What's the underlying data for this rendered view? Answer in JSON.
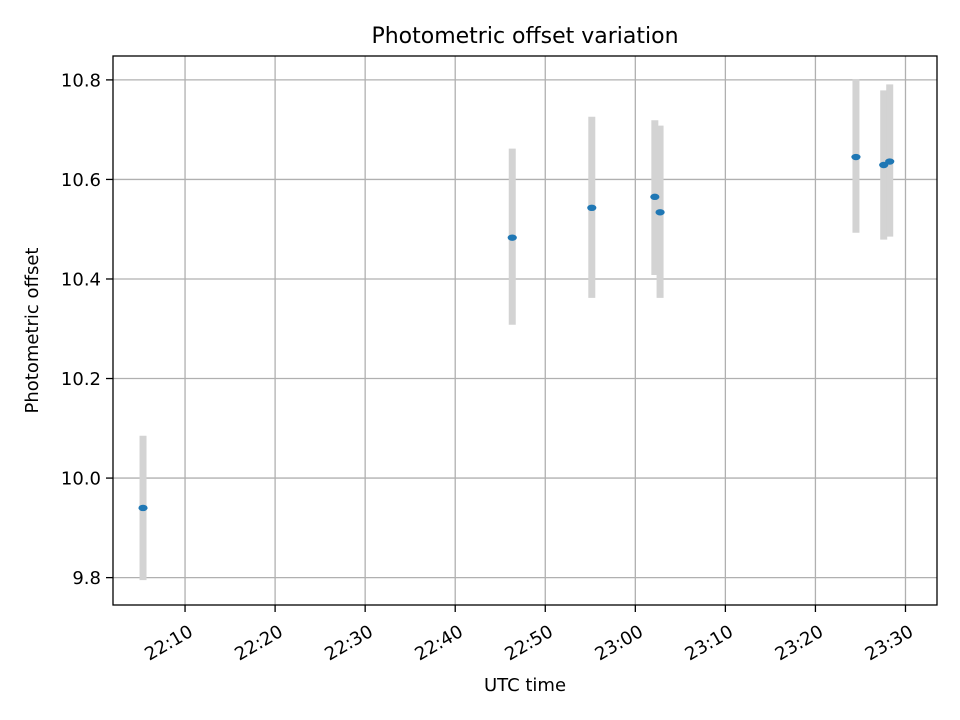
{
  "chart_data": {
    "type": "scatter",
    "title": "Photometric offset variation",
    "xlabel": "UTC time",
    "ylabel": "Photometric offset",
    "xlim": [
      "22:02:00",
      "23:33:30"
    ],
    "ylim": [
      9.745,
      10.848
    ],
    "x_ticks": [
      "22:10",
      "22:20",
      "22:30",
      "22:40",
      "22:50",
      "23:00",
      "23:10",
      "23:20",
      "23:30"
    ],
    "y_ticks": [
      "9.8",
      "10.0",
      "10.2",
      "10.4",
      "10.6",
      "10.8"
    ],
    "grid": true,
    "marker_color": "#1f77b4",
    "errorbar_color": "#d3d3d3",
    "points": [
      {
        "time": "22:05:20",
        "y": 9.94,
        "yerr_low": 9.795,
        "yerr_high": 10.085
      },
      {
        "time": "22:46:20",
        "y": 10.483,
        "yerr_low": 10.308,
        "yerr_high": 10.662
      },
      {
        "time": "22:55:10",
        "y": 10.543,
        "yerr_low": 10.362,
        "yerr_high": 10.726
      },
      {
        "time": "23:02:10",
        "y": 10.565,
        "yerr_low": 10.408,
        "yerr_high": 10.719
      },
      {
        "time": "23:02:45",
        "y": 10.534,
        "yerr_low": 10.362,
        "yerr_high": 10.708
      },
      {
        "time": "23:24:30",
        "y": 10.645,
        "yerr_low": 10.493,
        "yerr_high": 10.801
      },
      {
        "time": "23:27:35",
        "y": 10.629,
        "yerr_low": 10.479,
        "yerr_high": 10.779
      },
      {
        "time": "23:28:15",
        "y": 10.636,
        "yerr_low": 10.485,
        "yerr_high": 10.791
      }
    ]
  }
}
